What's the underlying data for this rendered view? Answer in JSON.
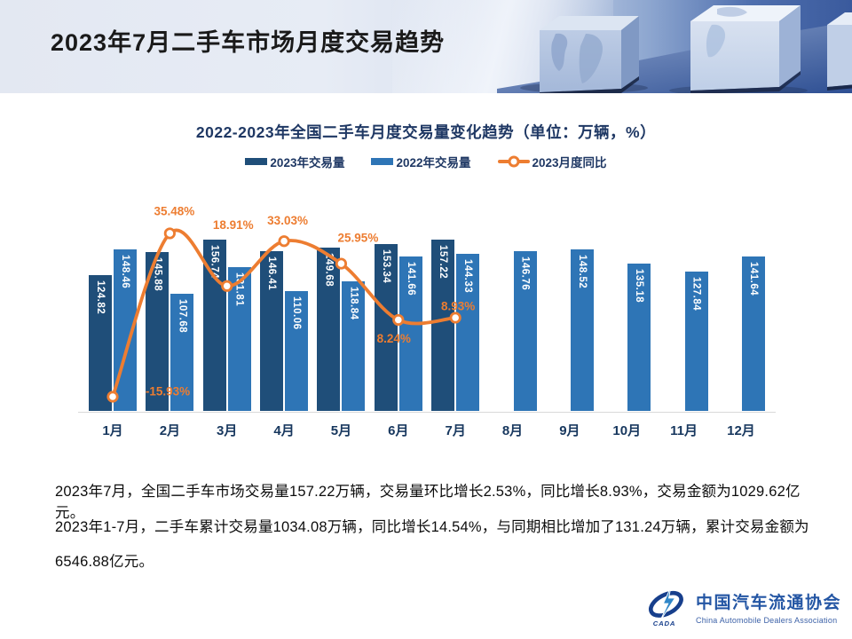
{
  "header": {
    "title": "2023年7月二手车市场月度交易趋势"
  },
  "chart": {
    "title": "2022-2023年全国二手车月度交易量变化趋势（单位：万辆，%）",
    "legend": [
      {
        "label": "2023年交易量",
        "type": "swatch",
        "color": "#1F4E79"
      },
      {
        "label": "2022年交易量",
        "type": "swatch",
        "color": "#2E75B6"
      },
      {
        "label": "2023月度同比",
        "type": "line",
        "color": "#ED7D31"
      }
    ]
  },
  "chart_data": {
    "type": "bar",
    "title": "2022-2023年全国二手车月度交易量变化趋势（单位：万辆，%）",
    "xlabel": "",
    "ylabel": "",
    "categories": [
      "1月",
      "2月",
      "3月",
      "4月",
      "5月",
      "6月",
      "7月",
      "8月",
      "9月",
      "10月",
      "11月",
      "12月"
    ],
    "series": [
      {
        "name": "2023年交易量",
        "type": "bar",
        "color": "#1F4E79",
        "values": [
          124.82,
          145.88,
          156.74,
          146.41,
          149.68,
          153.34,
          157.22,
          null,
          null,
          null,
          null,
          null
        ]
      },
      {
        "name": "2022年交易量",
        "type": "bar",
        "color": "#2E75B6",
        "values": [
          148.46,
          107.68,
          131.81,
          110.06,
          118.84,
          141.66,
          144.33,
          146.76,
          148.52,
          135.18,
          127.84,
          141.64
        ]
      },
      {
        "name": "2023月度同比",
        "type": "line",
        "color": "#ED7D31",
        "marker": "open-circle",
        "values": [
          -15.93,
          35.48,
          18.91,
          33.03,
          25.95,
          8.24,
          8.93,
          null,
          null,
          null,
          null,
          null
        ],
        "labels": [
          "-15.93%",
          "35.48%",
          "18.91%",
          "33.03%",
          "25.95%",
          "8.24%",
          "8.93%"
        ],
        "label_offsets": [
          [
            62,
            -6
          ],
          [
            5,
            -25
          ],
          [
            7,
            -69
          ],
          [
            4,
            -23
          ],
          [
            19,
            -29
          ],
          [
            -5,
            21
          ],
          [
            3,
            -13
          ]
        ]
      }
    ],
    "bar_axis_range": [
      0,
      170
    ],
    "pct_axis_range": [
      -20,
      40
    ],
    "grid": false,
    "value_axis_visible": false,
    "legend_position": "top",
    "bar_value_labels": "inside-top-vertical"
  },
  "summary": {
    "line1": "2023年7月，全国二手车市场交易量157.22万辆，交易量环比增长2.53%，同比增长8.93%，交易金额为1029.62亿元。",
    "line2": "2023年1-7月，二手车累计交易量1034.08万辆，同比增长14.54%，与同期相比增加了131.24万辆，累计交易金额为",
    "line3": "6546.88亿元。"
  },
  "logo": {
    "badge": "CADA",
    "name_cn": "中国汽车流通协会",
    "name_en": "China Automobile Dealers Association"
  }
}
